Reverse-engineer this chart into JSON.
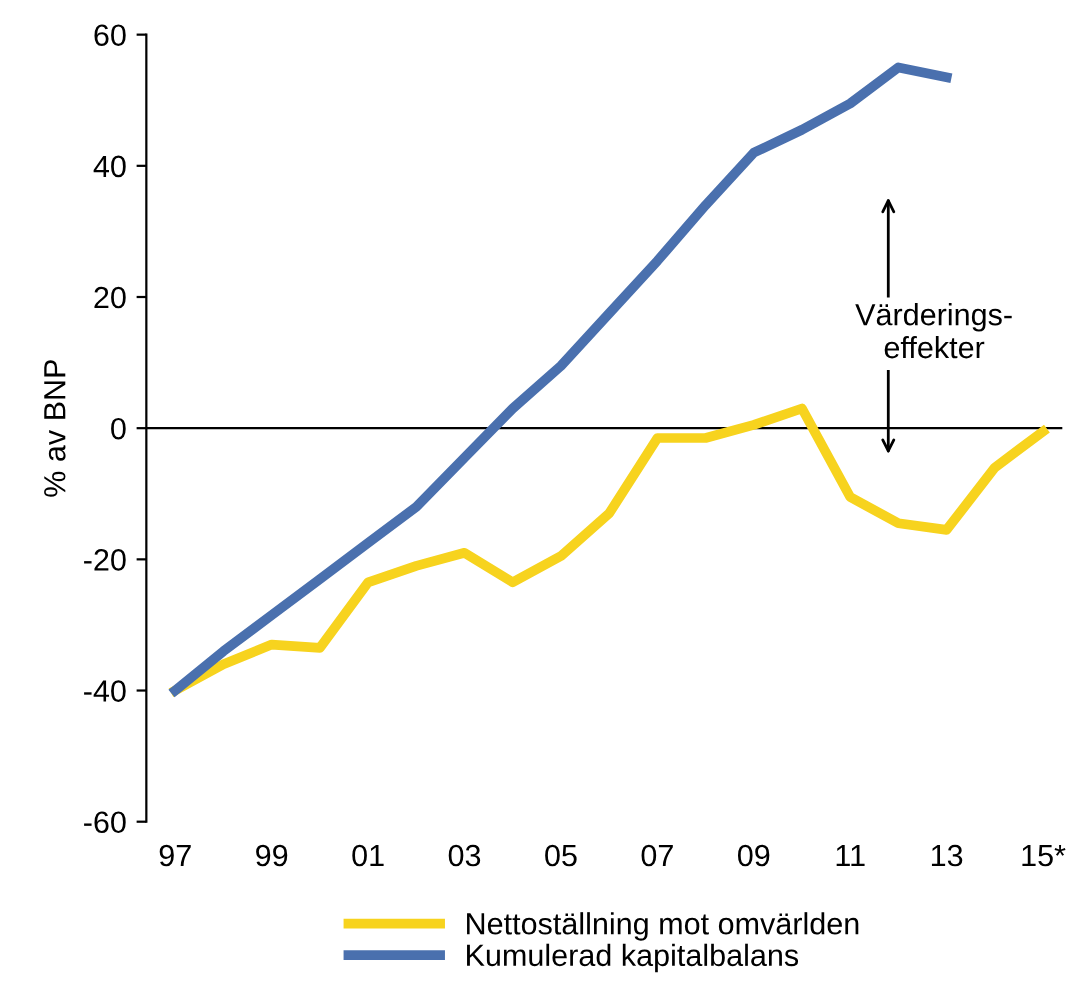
{
  "chart_data": {
    "type": "line",
    "ylabel": "% av BNP",
    "categories": [
      "97",
      null,
      "99",
      null,
      "01",
      null,
      "03",
      null,
      "05",
      null,
      "07",
      null,
      "09",
      null,
      "11",
      null,
      "13",
      null,
      "15*"
    ],
    "series": [
      {
        "name": "Nettoställning mot omvärlden",
        "color": "#f7d31e",
        "values": [
          -40,
          -36,
          -33,
          -33.5,
          -23.5,
          -21,
          -19,
          -23.5,
          -19.5,
          -13,
          -1.5,
          -1.5,
          0.5,
          3,
          -10.5,
          -14.5,
          -15.5,
          -6,
          -0.5
        ]
      },
      {
        "name": "Kumulerad kapitalbalans",
        "color": "#4a70ae",
        "values": [
          -40,
          -34,
          -28.5,
          -23,
          -17.5,
          -12,
          -4.5,
          3,
          9.5,
          17.5,
          25.5,
          34,
          42,
          45.5,
          49.5,
          55,
          53.5,
          null,
          null
        ]
      }
    ],
    "ylim": [
      -60,
      60
    ],
    "yticks": [
      -60,
      -40,
      -20,
      0,
      20,
      40,
      60
    ],
    "ref_lines": [
      {
        "axis": "y",
        "value": 0,
        "color": "#000000"
      }
    ],
    "annotations": [
      "Värderings-\neffekter"
    ],
    "grid": false,
    "legend": "bottom",
    "marker": "none",
    "line_style": "solid"
  }
}
